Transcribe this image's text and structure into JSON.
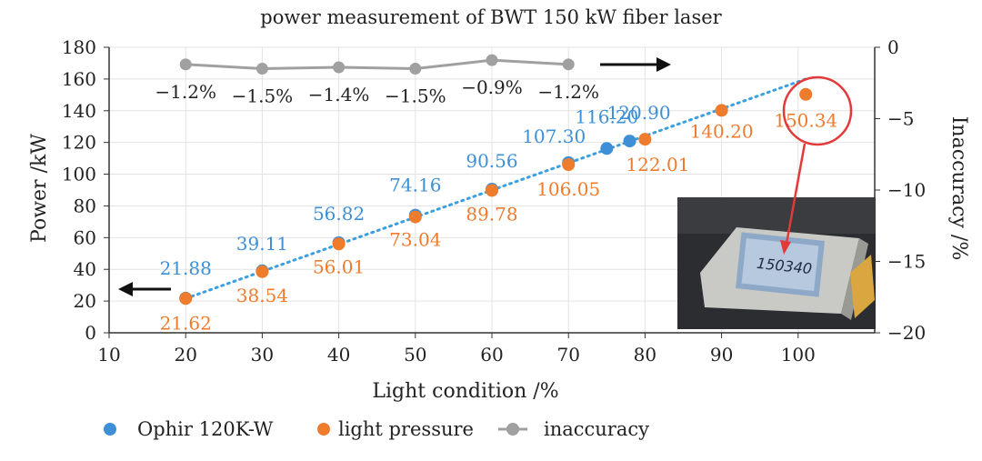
{
  "chart_data": {
    "type": "scatter",
    "title": "power measurement of BWT 150 kW fiber laser",
    "xlabel": "Light condition /%",
    "ylabel": "Power /kW",
    "y2label": "Inaccuracy /%",
    "xlim": [
      10,
      110
    ],
    "xticks": [
      10,
      20,
      30,
      40,
      50,
      60,
      70,
      80,
      90,
      100
    ],
    "ylim": [
      0,
      180
    ],
    "yticks": [
      0,
      20,
      40,
      60,
      80,
      100,
      120,
      140,
      160,
      180
    ],
    "y2lim": [
      -20,
      0
    ],
    "y2ticks": [
      0,
      -5,
      -10,
      -15,
      -20
    ],
    "y2tick_labels": [
      "0",
      "−5",
      "−10",
      "−15",
      "−20"
    ],
    "grid": true,
    "legend_position": "bottom",
    "colors": {
      "ophir": "#3d8fd6",
      "pressure": "#ef7b2d",
      "inaccuracy": "#a0a0a0",
      "fit": "#3aa0e0",
      "highlight": "#e23a3a"
    },
    "series": [
      {
        "name": "Ophir 120K-W",
        "axis": "left",
        "x": [
          20,
          30,
          40,
          50,
          60,
          70,
          75,
          78
        ],
        "y": [
          21.88,
          39.11,
          56.82,
          74.16,
          90.56,
          107.3,
          116.2,
          120.9
        ],
        "labels": [
          "21.88",
          "39.11",
          "56.82",
          "74.16",
          "90.56",
          "107.30",
          "116.20",
          "120.90"
        ]
      },
      {
        "name": "light pressure",
        "axis": "left",
        "x": [
          20,
          30,
          40,
          50,
          60,
          70,
          80,
          90,
          101
        ],
        "y": [
          21.62,
          38.54,
          56.01,
          73.04,
          89.78,
          106.05,
          122.01,
          140.2,
          150.34
        ],
        "labels": [
          "21.62",
          "38.54",
          "56.01",
          "73.04",
          "89.78",
          "106.05",
          "122.01",
          "140.20",
          "150.34"
        ]
      },
      {
        "name": "inaccuracy",
        "axis": "right",
        "x": [
          20,
          30,
          40,
          50,
          60,
          70
        ],
        "y": [
          -1.2,
          -1.5,
          -1.4,
          -1.5,
          -0.9,
          -1.2
        ],
        "labels": [
          "−1.2%",
          "−1.5%",
          "−1.4%",
          "−1.5%",
          "−0.9%",
          "−1.2%"
        ]
      }
    ],
    "inset": {
      "description_icon": "power-meter-display-photo",
      "display_value": "150340"
    }
  }
}
